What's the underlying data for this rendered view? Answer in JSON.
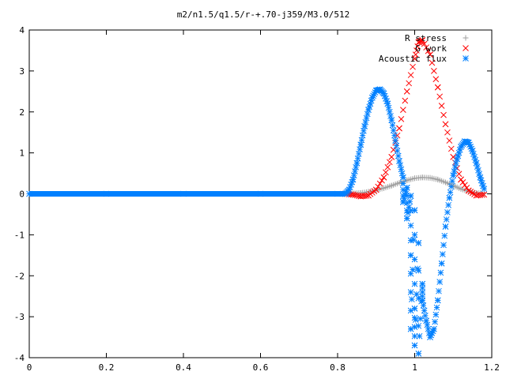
{
  "chart_data": {
    "type": "scatter",
    "title": "m2/n1.5/q1.5/r-+.70-j359/M3.0/512",
    "xlabel": "",
    "ylabel": "",
    "xlim": [
      0,
      1.2
    ],
    "ylim": [
      -4,
      4
    ],
    "x_ticks": [
      "0",
      "0.2",
      "0.4",
      "0.6",
      "0.8",
      "1",
      "1.2"
    ],
    "y_ticks": [
      "4",
      "3",
      "2",
      "1",
      "0",
      "-1",
      "-2",
      "-3",
      "-4"
    ],
    "grid": false,
    "legend_position": "top-right",
    "series": [
      {
        "name": "R stress",
        "marker": "plus",
        "color": "#a0a0a0",
        "points": [
          [
            0,
            0
          ],
          [
            0.2,
            0
          ],
          [
            0.4,
            0
          ],
          [
            0.6,
            0
          ],
          [
            0.82,
            0
          ],
          [
            0.84,
            0.01
          ],
          [
            0.86,
            0.02
          ],
          [
            0.88,
            0.05
          ],
          [
            0.9,
            0.09
          ],
          [
            0.92,
            0.14
          ],
          [
            0.94,
            0.2
          ],
          [
            0.96,
            0.27
          ],
          [
            0.98,
            0.33
          ],
          [
            1.0,
            0.38
          ],
          [
            1.02,
            0.4
          ],
          [
            1.04,
            0.39
          ],
          [
            1.06,
            0.35
          ],
          [
            1.08,
            0.28
          ],
          [
            1.1,
            0.2
          ],
          [
            1.12,
            0.12
          ],
          [
            1.14,
            0.06
          ],
          [
            1.16,
            0.02
          ],
          [
            1.18,
            0.01
          ]
        ]
      },
      {
        "name": "G work",
        "marker": "cross",
        "color": "#ff0000",
        "points": [
          [
            0.82,
            0
          ],
          [
            0.84,
            -0.02
          ],
          [
            0.86,
            -0.06
          ],
          [
            0.88,
            -0.04
          ],
          [
            0.9,
            0.1
          ],
          [
            0.92,
            0.4
          ],
          [
            0.94,
            0.9
          ],
          [
            0.96,
            1.6
          ],
          [
            0.98,
            2.5
          ],
          [
            1.0,
            3.3
          ],
          [
            1.01,
            3.7
          ],
          [
            1.02,
            3.75
          ],
          [
            1.04,
            3.4
          ],
          [
            1.06,
            2.6
          ],
          [
            1.08,
            1.7
          ],
          [
            1.1,
            0.9
          ],
          [
            1.12,
            0.35
          ],
          [
            1.14,
            0.08
          ],
          [
            1.16,
            -0.04
          ],
          [
            1.18,
            -0.02
          ]
        ]
      },
      {
        "name": "Acoustic flux",
        "marker": "star",
        "color": "#0080ff",
        "points": [
          [
            0,
            0
          ],
          [
            0.2,
            0
          ],
          [
            0.4,
            0
          ],
          [
            0.6,
            0
          ],
          [
            0.8,
            0
          ],
          [
            0.82,
            0
          ],
          [
            0.83,
            0.1
          ],
          [
            0.84,
            0.35
          ],
          [
            0.85,
            0.75
          ],
          [
            0.86,
            1.2
          ],
          [
            0.87,
            1.65
          ],
          [
            0.88,
            2.05
          ],
          [
            0.89,
            2.35
          ],
          [
            0.9,
            2.52
          ],
          [
            0.91,
            2.55
          ],
          [
            0.92,
            2.45
          ],
          [
            0.93,
            2.2
          ],
          [
            0.94,
            1.8
          ],
          [
            0.95,
            1.3
          ],
          [
            0.96,
            0.8
          ],
          [
            0.97,
            0.4
          ],
          [
            0.98,
            0.15
          ],
          [
            0.99,
            -0.05
          ],
          [
            1.0,
            -0.4
          ],
          [
            1.01,
            -1.2
          ],
          [
            1.02,
            -2.2
          ],
          [
            1.03,
            -3.1
          ],
          [
            1.04,
            -3.5
          ],
          [
            1.05,
            -3.3
          ],
          [
            1.06,
            -2.6
          ],
          [
            1.07,
            -1.7
          ],
          [
            1.08,
            -0.8
          ],
          [
            1.09,
            -0.1
          ],
          [
            1.1,
            0.45
          ],
          [
            1.11,
            0.85
          ],
          [
            1.12,
            1.15
          ],
          [
            1.13,
            1.28
          ],
          [
            1.14,
            1.25
          ],
          [
            1.15,
            1.05
          ],
          [
            1.16,
            0.75
          ],
          [
            1.17,
            0.4
          ],
          [
            1.18,
            0.12
          ],
          [
            0.97,
            -0.2
          ],
          [
            0.98,
            -0.6
          ],
          [
            0.99,
            -1.5
          ],
          [
            1.0,
            -2.8
          ],
          [
            1.0,
            -3.7
          ],
          [
            1.01,
            -3.9
          ],
          [
            0.99,
            -3.3
          ],
          [
            1.02,
            -2.6
          ]
        ]
      }
    ]
  }
}
